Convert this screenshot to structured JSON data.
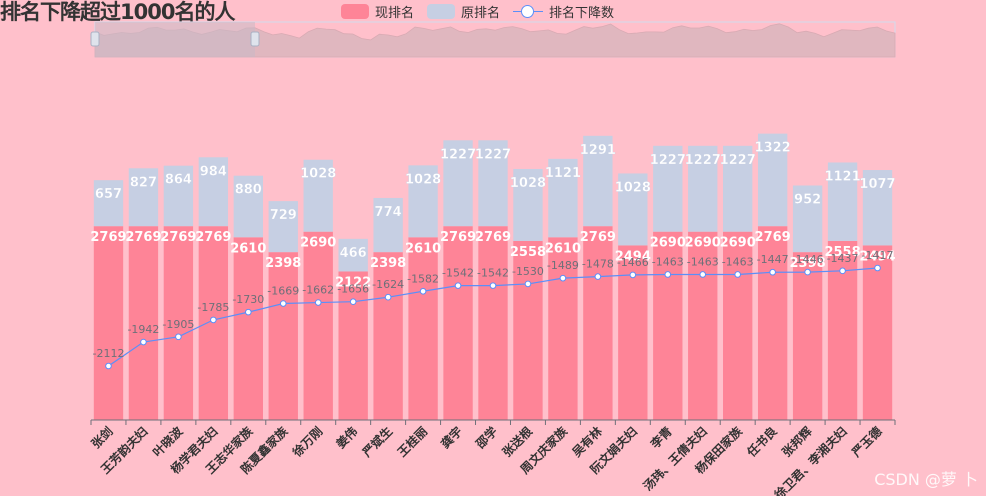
{
  "chart_data": {
    "type": "bar",
    "title": "排名下降超过1000名的人",
    "legend": {
      "position": "top",
      "items": [
        "现排名",
        "原排名",
        "排名下降数"
      ]
    },
    "colors": {
      "current": "#fe8497",
      "original": "#c6cfe3",
      "line": "#5b8ff9",
      "label": "#ffffff",
      "line_label": "#6e7079"
    },
    "categories": [
      "张剑",
      "王芳韵夫妇",
      "叶晓波",
      "杨学君夫妇",
      "王志华家族",
      "陈夏鑫家族",
      "徐万刚",
      "姜伟",
      "严斌生",
      "王桂丽",
      "龚宇",
      "邵学",
      "张送根",
      "周文庆家族",
      "吴有林",
      "阮文娟夫妇",
      "李青",
      "汤玮、王倩夫妇",
      "杨保田家族",
      "任书良",
      "张邦辉",
      "徐卫君、李湘夫妇",
      "严玉德"
    ],
    "series": [
      {
        "name": "现排名",
        "stack": "rank",
        "values": [
          2769,
          2769,
          2769,
          2769,
          2610,
          2398,
          2690,
          2122,
          2398,
          2610,
          2769,
          2769,
          2558,
          2610,
          2769,
          2494,
          2690,
          2690,
          2690,
          2769,
          2398,
          2558,
          2494
        ]
      },
      {
        "name": "原排名",
        "stack": "rank",
        "values": [
          657,
          827,
          864,
          984,
          880,
          729,
          1028,
          466,
          774,
          1028,
          1227,
          1227,
          1028,
          1121,
          1291,
          1028,
          1227,
          1227,
          1227,
          1322,
          952,
          1121,
          1077
        ]
      },
      {
        "name": "排名下降数",
        "type": "line",
        "values": [
          -2112,
          -1942,
          -1905,
          -1785,
          -1730,
          -1669,
          -1662,
          -1656,
          -1624,
          -1582,
          -1542,
          -1542,
          -1530,
          -1489,
          -1478,
          -1466,
          -1463,
          -1463,
          -1463,
          -1447,
          -1446,
          -1437,
          -1417
        ]
      }
    ],
    "axes": {
      "x_label_rotate": 45,
      "y_visible": false
    },
    "dataZoom": {
      "type": "slider",
      "position": "top",
      "range_percent": [
        0,
        20
      ]
    },
    "watermark": "CSDN @萝 卜"
  }
}
